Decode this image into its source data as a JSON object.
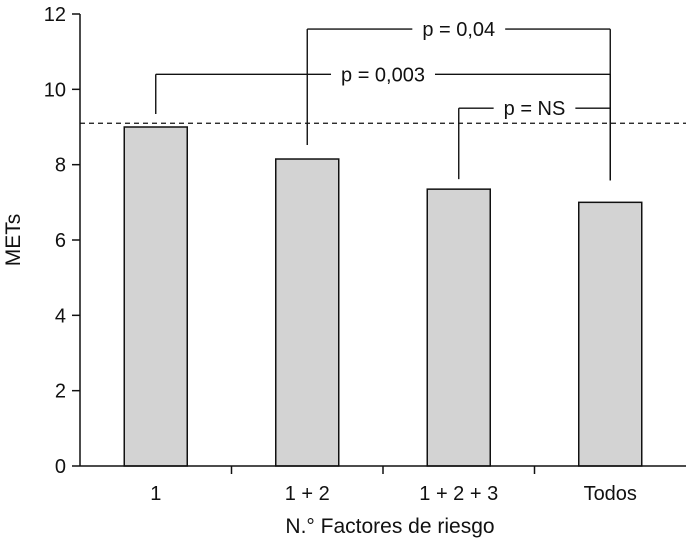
{
  "chart_data": {
    "type": "bar",
    "title": "",
    "xlabel": "N.° Factores de riesgo",
    "ylabel": "METs",
    "categories": [
      "1",
      "1 + 2",
      "1 + 2 + 3",
      "Todos"
    ],
    "values": [
      9.0,
      8.15,
      7.35,
      7.0
    ],
    "ylim": [
      0,
      12
    ],
    "yticks": [
      0,
      2,
      4,
      6,
      8,
      10,
      12
    ],
    "reference_line": {
      "value": 9.1,
      "style": "dashed"
    },
    "bar_color": "#d3d3d3",
    "annotations": [
      {
        "label": "p = 0,04",
        "from": 1,
        "to": 3,
        "level": 11.6
      },
      {
        "label": "p = 0,003",
        "from": 0,
        "to": 3,
        "level": 10.4
      },
      {
        "label": "p = NS",
        "from": 2,
        "to": 3,
        "level": 9.5
      }
    ]
  }
}
